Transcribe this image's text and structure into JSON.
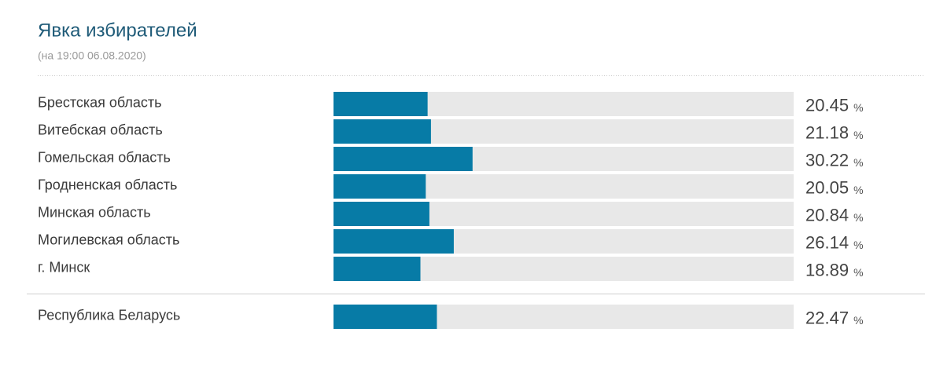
{
  "chart_data": {
    "type": "bar",
    "title": "Явка избирателей",
    "subtitle": "(на 19:00 06.08.2020)",
    "categories": [
      "Брестская область",
      "Витебская область",
      "Гомельская область",
      "Гродненская область",
      "Минская область",
      "Могилевская область",
      "г. Минск"
    ],
    "values": [
      20.45,
      21.18,
      30.22,
      20.05,
      20.84,
      26.14,
      18.89
    ],
    "total": {
      "category": "Республика Беларусь",
      "value": 22.47
    },
    "unit": "%",
    "xlim": [
      0,
      100
    ],
    "color": "#077ba6",
    "track_color": "#e8e8e8"
  }
}
